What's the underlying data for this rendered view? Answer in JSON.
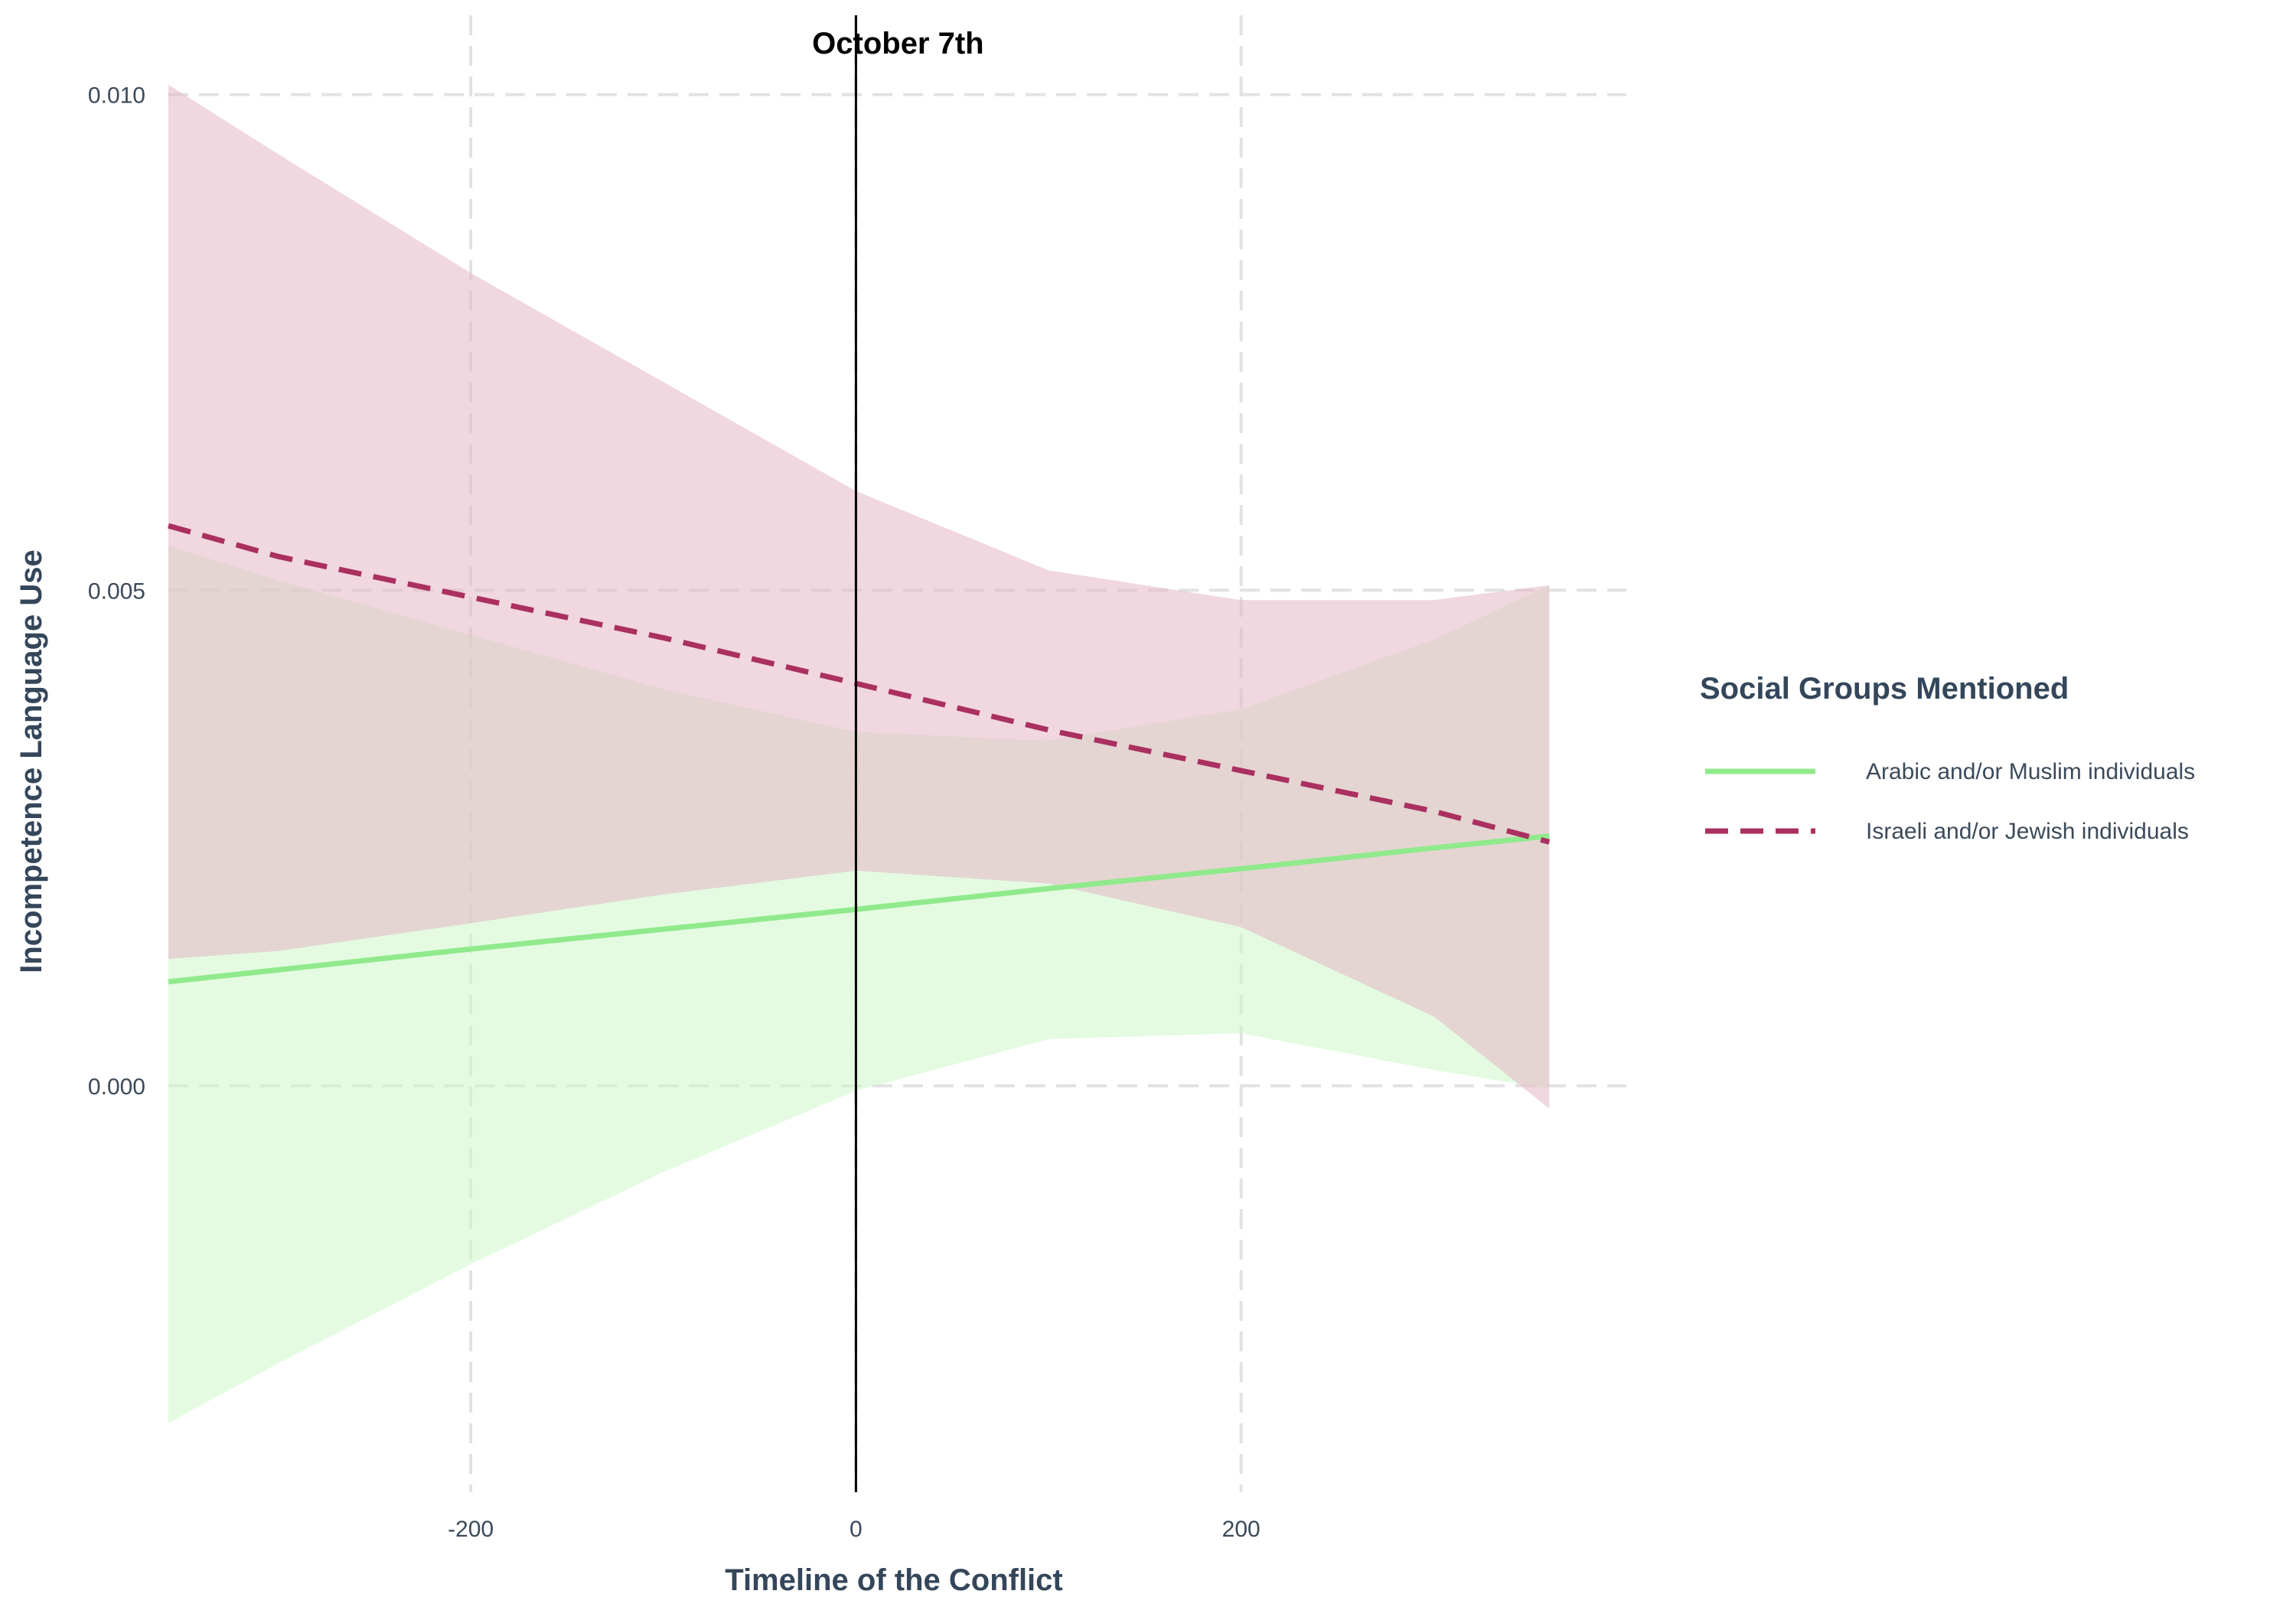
{
  "chart_data": {
    "type": "line",
    "title": "",
    "xlabel": "Timeline of the Conflict",
    "ylabel": "Incompetence Language Use",
    "xlim": [
      -357,
      400
    ],
    "ylim": [
      -0.0041,
      0.0108
    ],
    "x_ticks": [
      {
        "value": -200,
        "label": "-200"
      },
      {
        "value": 0,
        "label": "0"
      },
      {
        "value": 200,
        "label": "200"
      }
    ],
    "y_ticks": [
      {
        "value": 0.0,
        "label": "0.000"
      },
      {
        "value": 0.005,
        "label": "0.005"
      },
      {
        "value": 0.01,
        "label": "0.010"
      }
    ],
    "grid": true,
    "legend": {
      "title": "Social Groups Mentioned",
      "placement": "right"
    },
    "annotation": {
      "x": 0,
      "label": "October 7th"
    },
    "series": [
      {
        "name": "Arabic and/or Muslim individuals",
        "color": "#90ea8c",
        "fill_color": "#cdf7c8",
        "line_style": "solid",
        "x": [
          -357,
          -300,
          -200,
          -100,
          0,
          100,
          200,
          300,
          360
        ],
        "y": [
          0.00105,
          0.00117,
          0.00138,
          0.00158,
          0.00178,
          0.00199,
          0.00219,
          0.0024,
          0.00252
        ],
        "lower": [
          -0.0034,
          -0.0028,
          -0.0018,
          -0.00087,
          -5e-05,
          0.00047,
          0.00053,
          0.00016,
          -3e-05
        ],
        "upper": [
          0.00545,
          0.0051,
          0.00455,
          0.004,
          0.00357,
          0.00348,
          0.0038,
          0.0045,
          0.00505
        ]
      },
      {
        "name": "Israeli and/or Jewish individuals",
        "color": "#aa3060",
        "fill_color": "#e3b6c6",
        "line_style": "dashed",
        "x": [
          -357,
          -300,
          -200,
          -100,
          0,
          100,
          200,
          300,
          360
        ],
        "y": [
          0.00565,
          0.00534,
          0.00493,
          0.00452,
          0.00406,
          0.00359,
          0.00318,
          0.00277,
          0.00246
        ],
        "lower": [
          0.00128,
          0.00136,
          0.00164,
          0.00193,
          0.00217,
          0.00204,
          0.0016,
          0.0007,
          -0.00023
        ],
        "upper": [
          0.0101,
          0.0094,
          0.0082,
          0.0071,
          0.006,
          0.0052,
          0.0049,
          0.0049,
          0.00505
        ]
      }
    ]
  }
}
